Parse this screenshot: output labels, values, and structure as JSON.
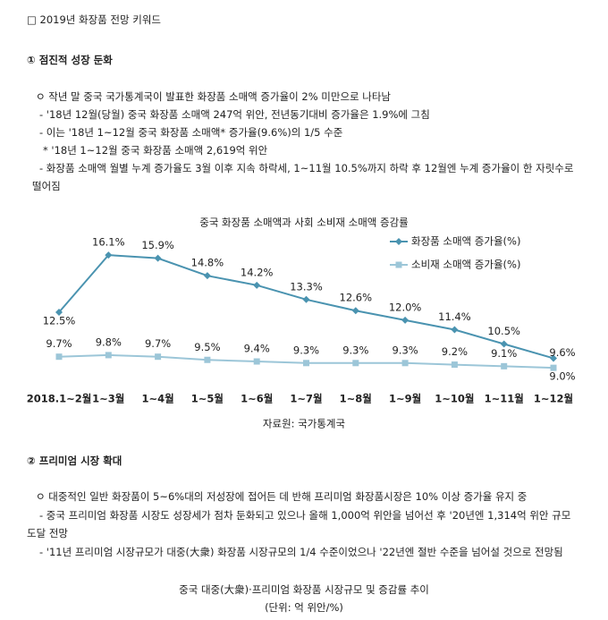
{
  "document": {
    "heading": "□ 2019년 화장품 전망 키워드",
    "section1": {
      "title": "① 점진적 성장 둔화",
      "lines": [
        "ㅇ 작년 말 중국 국가통계국이 발표한 화장품 소매액 증가율이 2% 미만으로 나타남",
        "- '18년 12월(당월) 중국 화장품 소매액 247억 위안, 전년동기대비 증가율은 1.9%에 그침",
        "- 이는 '18년 1~12월 중국 화장품 소매액* 증가율(9.6%)의 1/5 수준",
        "* '18년 1~12월 중국 화장품 소매액 2,619억 위안",
        "- 화장품 소매액 월별 누계 증가율도 3월 이후 지속 하락세, 1~11월 10.5%까지 하락 후 12월엔 누계 증가율이 한 자릿수로 떨어짐"
      ]
    },
    "section2": {
      "title": "② 프리미엄 시장 확대",
      "lines": [
        "ㅇ 대중적인 일반 화장품이 5~6%대의 저성장에 접어든 데 반해 프리미엄 화장품시장은 10% 이상 증가율 유지 중",
        "- 중국 프리미엄 화장품 시장도 성장세가 점차 둔화되고 있으나 올해 1,000억 위안을 넘어선 후 '20년엔 1,314억 위안 규모 도달 전망",
        "- '11년 프리미엄 시장규모가 대중(大衆) 화장품 시장규모의 1/4 수준이었으나 '22년엔 절반 수준을 넘어설 것으로 전망됨"
      ],
      "next_title": "중국 대중(大衆)·프리미엄 화장품 시장규모 및 증감률 추이",
      "next_unit": "(단위: 억 위안/%)"
    }
  },
  "chart_data": {
    "type": "line",
    "title": "중국 화장품 소매액과 사회 소비재 소매액 증감률",
    "source": "자료원: 국가통계국",
    "categories": [
      "2018.1~2월",
      "1~3월",
      "1~4월",
      "1~5월",
      "1~6월",
      "1~7월",
      "1~8월",
      "1~9월",
      "1~10월",
      "1~11월",
      "1~12월"
    ],
    "series": [
      {
        "name": "화장품 소매액 증가율(%)",
        "color": "#4a93b0",
        "marker": "diamond",
        "values": [
          12.5,
          16.1,
          15.9,
          14.8,
          14.2,
          13.3,
          12.6,
          12.0,
          11.4,
          10.5,
          9.6
        ],
        "value_labels": [
          "12.5%",
          "16.1%",
          "15.9%",
          "14.8%",
          "14.2%",
          "13.3%",
          "12.6%",
          "12.0%",
          "11.4%",
          "10.5%",
          "9.6%"
        ]
      },
      {
        "name": "소비재 소매액 증가율(%)",
        "color": "#9cc6d8",
        "marker": "square",
        "values": [
          9.7,
          9.8,
          9.7,
          9.5,
          9.4,
          9.3,
          9.3,
          9.3,
          9.2,
          9.1,
          9.0
        ],
        "value_labels": [
          "9.7%",
          "9.8%",
          "9.7%",
          "9.5%",
          "9.4%",
          "9.3%",
          "9.3%",
          "9.3%",
          "9.2%",
          "9.1%",
          "9.0%"
        ]
      }
    ],
    "ylim": [
      8.5,
      16.5
    ],
    "legend": "upper right"
  }
}
